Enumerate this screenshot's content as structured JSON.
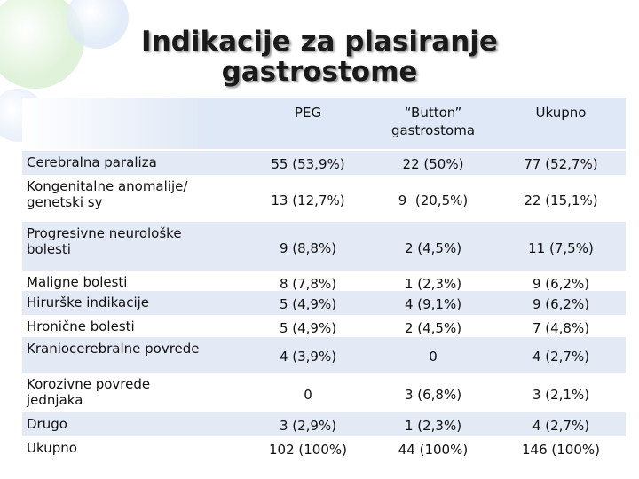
{
  "title": [
    "Indikacije za plasiranje",
    "gastrostome"
  ],
  "table": {
    "columns": [
      [
        "PEG"
      ],
      [
        "“Button”",
        "gastrostoma"
      ],
      [
        "Ukupno"
      ]
    ],
    "rows": [
      {
        "label": [
          "Cerebralna paraliza"
        ],
        "cells": [
          "55 (53,9%)",
          "22 (50%)",
          "77 (52,7%)"
        ]
      },
      {
        "label": [
          "Kongenitalne anomalije/",
          "genetski sy"
        ],
        "cells": [
          "13 (12,7%)",
          "9  (20,5%)",
          "22 (15,1%)"
        ]
      },
      {
        "label": [
          "Progresivne neurološke",
          "bolesti"
        ],
        "cells": [
          "9 (8,8%)",
          "2 (4,5%)",
          "11 (7,5%)"
        ]
      },
      {
        "label": [
          "Maligne bolesti"
        ],
        "cells": [
          "8 (7,8%)",
          "1 (2,3%)",
          "9 (6,2%)"
        ]
      },
      {
        "label": [
          "Hirurške indikacije"
        ],
        "cells": [
          "5 (4,9%)",
          "4 (9,1%)",
          "9 (6,2%)"
        ]
      },
      {
        "label": [
          "Hronične bolesti"
        ],
        "cells": [
          "5 (4,9%)",
          "2 (4,5%)",
          "7 (4,8%)"
        ]
      },
      {
        "label": [
          "Kraniocerebralne povrede"
        ],
        "cells": [
          "4 (3,9%)",
          "0",
          "4 (2,7%)"
        ]
      },
      {
        "label": [
          "Korozivne povrede",
          "jednjaka"
        ],
        "cells": [
          "0",
          "3 (6,8%)",
          "3 (2,1%)"
        ]
      },
      {
        "label": [
          "Drugo"
        ],
        "cells": [
          "3 (2,9%)",
          "1 (2,3%)",
          "4 (2,7%)"
        ]
      },
      {
        "label": [
          "Ukupno"
        ],
        "cells": [
          "102 (100%)",
          "44 (100%)",
          "146 (100%)"
        ]
      }
    ]
  }
}
